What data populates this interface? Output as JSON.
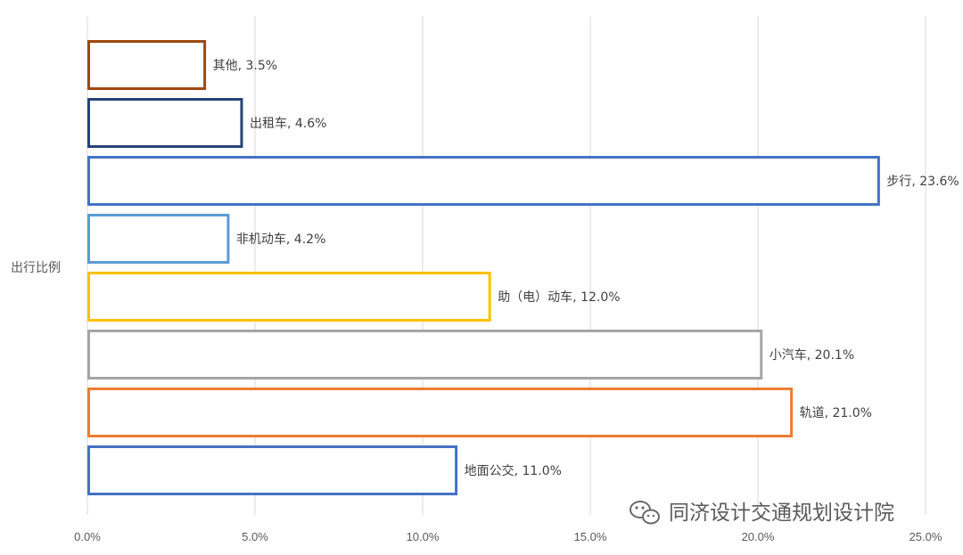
{
  "chart_data": {
    "type": "bar",
    "orientation": "horizontal",
    "ylabel": "出行比例",
    "xlim": [
      0,
      25
    ],
    "xticks": [
      "0.0%",
      "5.0%",
      "10.0%",
      "15.0%",
      "20.0%",
      "25.0%"
    ],
    "grid": true,
    "categories": [
      "其他",
      "出租车",
      "步行",
      "非机动车",
      "助（电）动车",
      "小汽车",
      "轨道",
      "地面公交"
    ],
    "values": [
      3.5,
      4.6,
      23.6,
      4.2,
      12.0,
      20.1,
      21.0,
      11.0
    ],
    "labels": [
      "其他, 3.5%",
      "出租车, 4.6%",
      "步行, 23.6%",
      "非机动车, 4.2%",
      "助（电）动车, 12.0%",
      "小汽车, 20.1%",
      "轨道, 21.0%",
      "地面公交, 11.0%"
    ],
    "colors": [
      "#9e480e",
      "#264478",
      "#4472c4",
      "#5b9bd5",
      "#ffc000",
      "#a5a5a5",
      "#ed7d31",
      "#4472c4"
    ]
  },
  "watermark": {
    "text": "同济设计交通规划设计院",
    "icon": "wechat-icon"
  }
}
